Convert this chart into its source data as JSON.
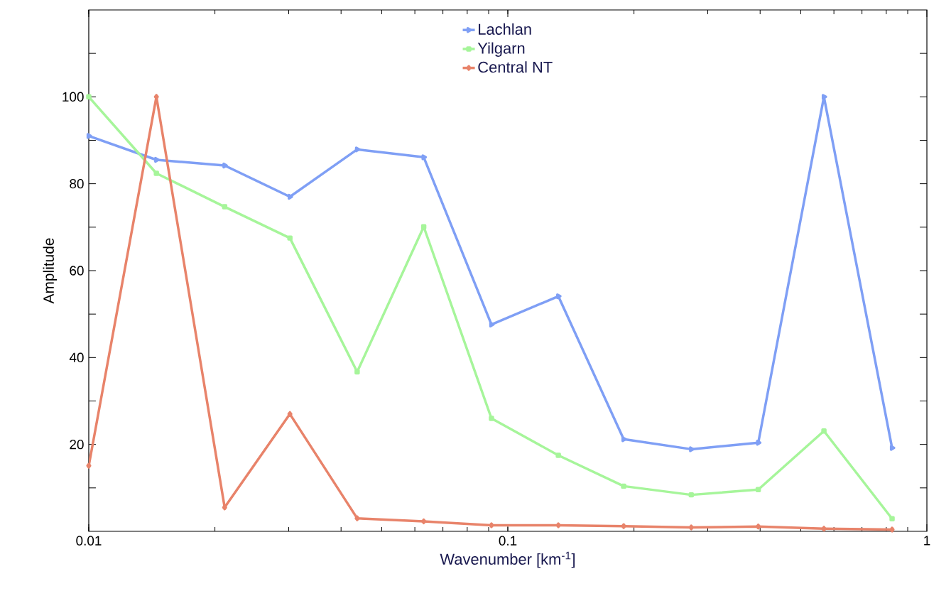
{
  "chart_data": {
    "type": "line",
    "xlabel": "Wavenumber [km$^{-1}$]",
    "ylabel": "Amplitude",
    "log": "x",
    "x": [
      0.01,
      0.0145,
      0.0211,
      0.0302,
      0.0437,
      0.063,
      0.0914,
      0.132,
      0.189,
      0.274,
      0.396,
      0.568,
      0.826
    ],
    "xlim": [
      0.01,
      1
    ],
    "xticks": [
      0.01,
      0.1,
      1
    ],
    "ylim": [
      0,
      120
    ],
    "yticks": [
      {
        "value": 10,
        "label": null
      },
      20,
      {
        "value": 30,
        "label": null
      },
      40,
      {
        "value": 50,
        "label": null
      },
      60,
      {
        "value": 70,
        "label": null
      },
      80,
      {
        "value": 90,
        "label": null
      },
      100,
      {
        "value": 110,
        "label": null
      }
    ],
    "legend": "top",
    "grid": false,
    "line_style": "solid",
    "series": [
      {
        "name": "Lachlan",
        "color": "#7f9ff5",
        "marker": "triangle",
        "values": [
          91.0,
          85.5,
          84.2,
          77.0,
          87.9,
          86.1,
          47.6,
          54.1,
          21.2,
          18.9,
          20.4,
          100,
          19.2
        ]
      },
      {
        "name": "Yilgarn",
        "color": "#a6f59a",
        "marker": "square",
        "values": [
          100,
          82.4,
          74.7,
          67.5,
          36.7,
          70.1,
          26.0,
          17.5,
          10.4,
          8.4,
          9.6,
          23.1,
          2.9
        ]
      },
      {
        "name": "Central NT",
        "color": "#e8836a",
        "marker": "diamond",
        "values": [
          15.1,
          100,
          5.5,
          27.0,
          3.0,
          2.3,
          1.4,
          1.4,
          1.2,
          0.9,
          1.1,
          0.6,
          0.4
        ]
      }
    ]
  }
}
